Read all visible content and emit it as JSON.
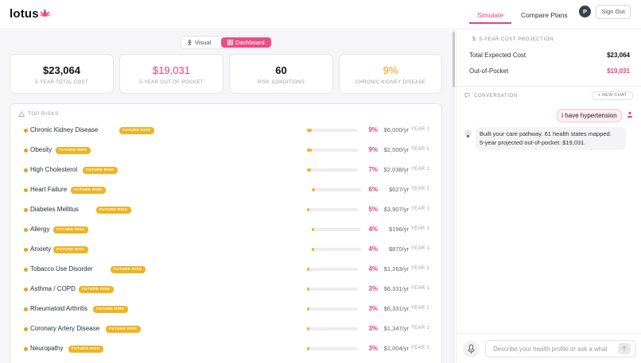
{
  "header": {
    "logo": "lotus",
    "tabs": [
      "Simulate",
      "Compare Plans"
    ],
    "avatar_initial": "P",
    "signout_label": "Sign Out"
  },
  "view_toggle": {
    "visual_label": "Visual",
    "dashboard_label": "Dashboard"
  },
  "stats": [
    {
      "value": "$23,064",
      "label": "5-YEAR TOTAL COST",
      "color": "#111111"
    },
    {
      "value": "$19,031",
      "label": "5-YEAR OUT-OF-POCKET",
      "color": "#e0457a"
    },
    {
      "value": "60",
      "label": "RISK CONDITIONS",
      "color": "#111111"
    },
    {
      "value": "9%",
      "label": "CHRONIC KIDNEY DISEASE",
      "color": "#e8a317"
    }
  ],
  "risks": {
    "title": "TOP RISKS",
    "badge_label": "FUTURE RISK",
    "items": [
      {
        "name": "Chronic Kidney Disease",
        "pct": "9%",
        "cost": "$6,000/yr",
        "year": "YEAR 1",
        "level": 0.09
      },
      {
        "name": "Obesity",
        "pct": "9%",
        "cost": "$2,500/yr",
        "year": "YEAR 1",
        "level": 0.09
      },
      {
        "name": "High Cholesterol",
        "pct": "7%",
        "cost": "$2,038/yr",
        "year": "YEAR 1",
        "level": 0.07
      },
      {
        "name": "Heart Failure",
        "pct": "6%",
        "cost": "$627/yr",
        "year": "YEAR 1",
        "level": 0.06
      },
      {
        "name": "Diabetes Mellitus",
        "pct": "5%",
        "cost": "$3,907/yr",
        "year": "YEAR 1",
        "level": 0.05
      },
      {
        "name": "Allergy",
        "pct": "4%",
        "cost": "$196/yr",
        "year": "YEAR 1",
        "level": 0.04
      },
      {
        "name": "Anxiety",
        "pct": "4%",
        "cost": "$870/yr",
        "year": "YEAR 1",
        "level": 0.04
      },
      {
        "name": "Tobacco Use Disorder",
        "pct": "4%",
        "cost": "$1,263/yr",
        "year": "YEAR 1",
        "level": 0.04
      },
      {
        "name": "Asthma / COPD",
        "pct": "3%",
        "cost": "$6,331/yr",
        "year": "YEAR 1",
        "level": 0.03
      },
      {
        "name": "Rheumatoid Arthritis",
        "pct": "3%",
        "cost": "$6,331/yr",
        "year": "YEAR 1",
        "level": 0.03
      },
      {
        "name": "Coronary Artery Disease",
        "pct": "3%",
        "cost": "$1,347/yr",
        "year": "YEAR 1",
        "level": 0.03
      },
      {
        "name": "Neuropathy",
        "pct": "3%",
        "cost": "$1,004/yr",
        "year": "YEAR 1",
        "level": 0.03
      }
    ]
  },
  "projection": {
    "title": "5-YEAR COST PROJECTION",
    "total_label": "Total Expected Cost",
    "total_value": "$23,064",
    "oop_label": "Out-of-Pocket",
    "oop_value": "$19,031"
  },
  "conversation": {
    "title": "CONVERSATION",
    "new_chat_label": "+ NEW CHAT",
    "user_message": "i have hypertension",
    "assistant_line1": "Built your care pathway. 61 health states mapped.",
    "assistant_line2": "5-year projected out-of-pocket: $19,031.",
    "input_placeholder": "Describe your health profile or ask a what"
  },
  "colors": {
    "accent": "#e0457a",
    "risk": "#f0b323"
  }
}
